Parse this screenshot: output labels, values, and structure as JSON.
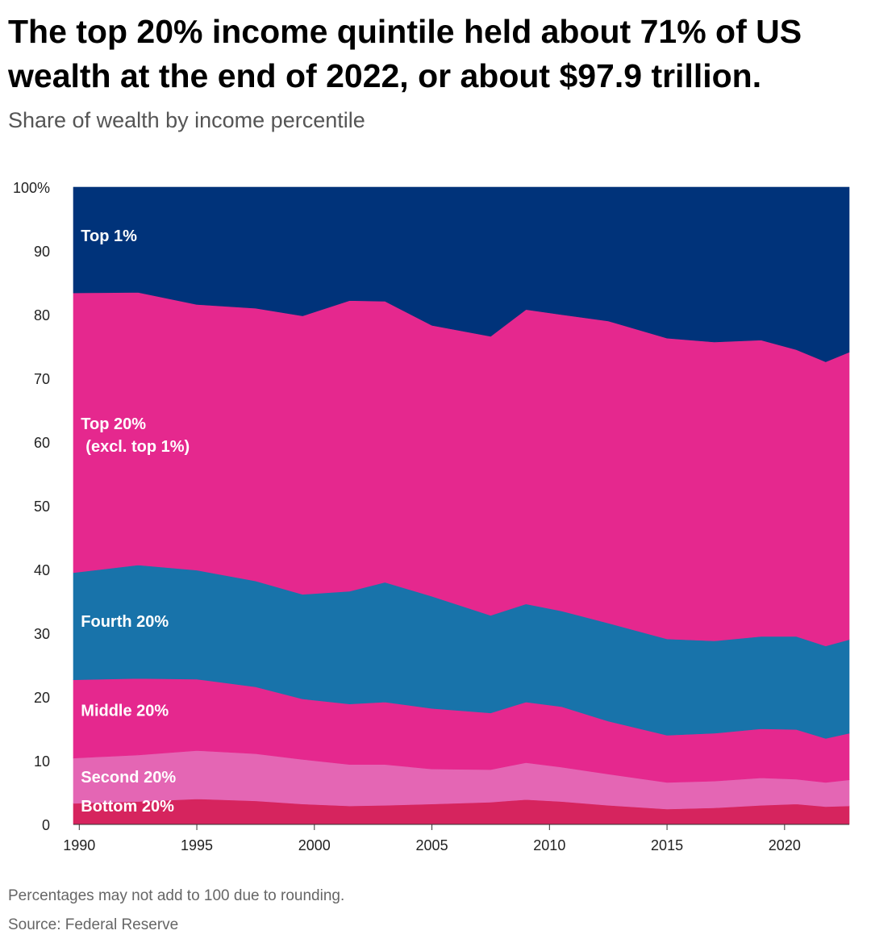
{
  "header": {
    "title": "The top 20% income quintile held about 71% of US wealth at the end of 2022, or about $97.9 trillion.",
    "subtitle": "Share of wealth by income percentile"
  },
  "footer": {
    "note": "Percentages may not add to 100 due to rounding.",
    "source": "Source: Federal Reserve"
  },
  "chart_data": {
    "type": "area",
    "stacked": true,
    "x": [
      1989.75,
      1992.5,
      1995,
      1997.5,
      1999.5,
      2001.5,
      2003,
      2005,
      2007.5,
      2009,
      2010.5,
      2012.5,
      2015,
      2017,
      2019,
      2020.5,
      2021.75,
      2022.75
    ],
    "ylim": [
      0,
      100
    ],
    "xlim": [
      1989.75,
      2022.75
    ],
    "y_ticks": [
      0,
      10,
      20,
      30,
      40,
      50,
      60,
      70,
      80,
      90,
      100
    ],
    "y_tick_labels": [
      "0",
      "10",
      "20",
      "30",
      "40",
      "50",
      "60",
      "70",
      "80",
      "90",
      "100%"
    ],
    "x_ticks": [
      1990,
      1995,
      2000,
      2005,
      2010,
      2015,
      2020
    ],
    "x_tick_labels": [
      "1990",
      "1995",
      "2000",
      "2005",
      "2010",
      "2015",
      "2020"
    ],
    "grid": "horizontal",
    "series": [
      {
        "name": "Bottom 20%",
        "color": "#d6245e",
        "label_at": [
          1990,
          2
        ],
        "values": [
          3.3,
          3.6,
          4.0,
          3.7,
          3.2,
          2.9,
          3.0,
          3.2,
          3.5,
          3.9,
          3.6,
          3.0,
          2.4,
          2.6,
          3.0,
          3.2,
          2.8,
          2.9
        ]
      },
      {
        "name": "Second 20%",
        "color": "#e466b4",
        "label_at": [
          1990,
          6.6
        ],
        "values": [
          7.1,
          7.3,
          7.6,
          7.4,
          7.0,
          6.5,
          6.4,
          5.5,
          5.1,
          5.8,
          5.4,
          4.9,
          4.2,
          4.2,
          4.3,
          3.9,
          3.8,
          4.1
        ]
      },
      {
        "name": "Middle 20%",
        "color": "#e5288e",
        "label_at": [
          1990,
          17
        ],
        "values": [
          12.3,
          12.0,
          11.2,
          10.5,
          9.5,
          9.5,
          9.8,
          9.5,
          8.9,
          9.5,
          9.5,
          8.3,
          7.4,
          7.5,
          7.7,
          7.8,
          6.9,
          7.3
        ]
      },
      {
        "name": "Fourth 20%",
        "color": "#1873aa",
        "label_at": [
          1990,
          31
        ],
        "values": [
          16.8,
          17.8,
          17.1,
          16.6,
          16.4,
          17.7,
          18.8,
          17.6,
          15.3,
          15.4,
          15.0,
          15.4,
          15.1,
          14.5,
          14.5,
          14.6,
          14.5,
          14.7
        ]
      },
      {
        "name": "Top 20% (excl. top 1%)",
        "color": "#e5288e",
        "label_at": [
          1990,
          62
        ],
        "label_lines": [
          "Top 20%",
          "(excl. top 1%)"
        ],
        "values": [
          43.9,
          42.8,
          41.7,
          42.8,
          43.7,
          45.6,
          44.1,
          42.5,
          43.8,
          46.2,
          46.5,
          47.4,
          47.2,
          46.9,
          46.5,
          45.0,
          44.6,
          45.1
        ]
      },
      {
        "name": "Top 1%",
        "color": "#00337a",
        "label_at": [
          1990,
          91.5
        ],
        "values": [
          16.6,
          16.5,
          18.4,
          19.0,
          20.2,
          17.8,
          17.9,
          21.7,
          23.4,
          19.2,
          20.0,
          21.0,
          23.7,
          24.3,
          24.0,
          25.5,
          27.4,
          25.9
        ]
      }
    ]
  }
}
